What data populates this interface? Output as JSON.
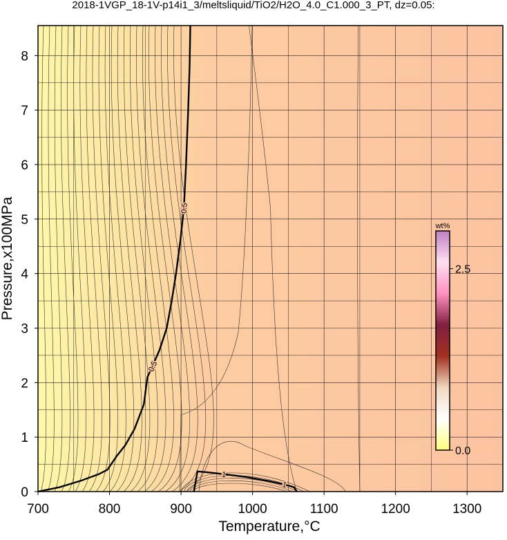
{
  "chart_data": {
    "type": "contour",
    "title": "2018-1VGP_18-1V-p14i1_3/meltsliquid/TiO2/H2O_4.0_C1.000_3_PT, dz=0.05:",
    "x_label": "Temperature,°C",
    "y_label": "Pressure,x100MPa",
    "xlim": [
      700,
      1350
    ],
    "ylim": [
      0,
      8.55
    ],
    "xticks": [
      700,
      800,
      900,
      1000,
      1100,
      1200,
      1300
    ],
    "yticks": [
      0,
      1,
      2,
      3,
      4,
      5,
      6,
      7,
      8
    ],
    "xminor": [
      750,
      850,
      950,
      1050,
      1150,
      1250
    ],
    "yminor": [
      0.5,
      1.5,
      2.5,
      3.5,
      4.5,
      5.5,
      6.5,
      7.5
    ],
    "grid": true,
    "contours": [
      {
        "level": 0.5,
        "x": [
          700,
          730,
          760,
          785,
          797,
          810,
          822,
          835,
          848,
          851,
          853,
          860,
          870,
          880,
          887,
          893,
          899,
          904,
          907,
          910,
          912,
          913
        ],
        "y": [
          0,
          0.08,
          0.2,
          0.32,
          0.4,
          0.65,
          0.85,
          1.15,
          1.6,
          1.9,
          2.1,
          2.3,
          2.6,
          3.0,
          3.5,
          4.0,
          4.6,
          5.2,
          6.0,
          7.0,
          7.8,
          8.55
        ]
      },
      {
        "level": 1,
        "x": [
          918,
          920,
          923,
          940,
          960,
          990,
          1020,
          1045,
          1058,
          1062
        ],
        "y": [
          0,
          0.15,
          0.37,
          0.35,
          0.32,
          0.27,
          0.2,
          0.13,
          0.08,
          0
        ]
      }
    ],
    "colorbar": {
      "title": "wt%",
      "clim": [
        0,
        3.02
      ],
      "ticks": [
        {
          "value": 0,
          "label": "0.0"
        },
        {
          "value": 2.5,
          "label": "2.5"
        }
      ],
      "colors": [
        "#ffff80",
        "#ffffff",
        "#f0d8c0",
        "#a03020",
        "#802040",
        "#ff90c0",
        "#ffe0f0",
        "#c080c0"
      ]
    }
  }
}
